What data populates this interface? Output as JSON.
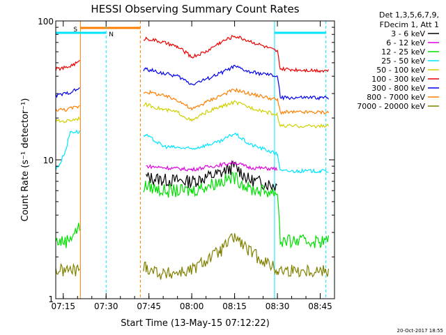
{
  "chart_data": {
    "type": "line",
    "title": "HESSI Observing Summary Count Rates",
    "xlabel": "Start Time (13-May-15 07:12:22)",
    "ylabel": "Count Rate (s⁻¹ detector⁻¹)",
    "y_scale": "log",
    "ylim": [
      1,
      100
    ],
    "xlim": [
      "07:12:22",
      "08:50:00"
    ],
    "x_ticks": [
      "07:15",
      "07:30",
      "07:45",
      "08:00",
      "08:15",
      "08:30",
      "08:45"
    ],
    "y_ticks": [
      "1",
      "10",
      "100"
    ],
    "legend": {
      "placement": "right",
      "header": [
        "Det 1,3,5,6,7,9,",
        "FDecim 1, Att 1"
      ]
    },
    "flag_labels": {
      "saa": "S",
      "night": "N"
    },
    "timestamp": "20-Oct-2017 18:55",
    "series": [
      {
        "name": "3 - 6 keV",
        "color": "#000000",
        "x": [
          "07:12:22",
          "07:15:00",
          "07:17:00",
          "07:44:00",
          "07:50:00",
          "08:00:00",
          "08:10:00",
          "08:15:00",
          "08:20:00",
          "08:30:00"
        ],
        "values": [
          null,
          null,
          null,
          7.5,
          7.2,
          7.0,
          8.0,
          9.0,
          7.2,
          6.5
        ]
      },
      {
        "name": "6 - 12 keV",
        "color": "#e000e0",
        "x": [
          "07:44:00",
          "07:50:00",
          "08:00:00",
          "08:10:00",
          "08:15:00",
          "08:20:00",
          "08:30:00"
        ],
        "values": [
          9.0,
          8.8,
          8.5,
          9.2,
          9.6,
          8.8,
          8.6
        ]
      },
      {
        "name": "12 - 25 keV",
        "color": "#00e000",
        "x": [
          "07:12:22",
          "07:16:00",
          "07:44:00",
          "07:50:00",
          "08:00:00",
          "08:10:00",
          "08:15:00",
          "08:20:00",
          "08:30:00",
          "08:31:00",
          "08:45:00",
          "08:48:00"
        ],
        "values": [
          2.6,
          2.6,
          6.5,
          6.0,
          6.0,
          7.0,
          7.5,
          6.2,
          5.8,
          2.6,
          2.6,
          2.6
        ]
      },
      {
        "name": "25 - 50 keV",
        "color": "#00e5ff",
        "x": [
          "07:12:22",
          "07:14:00",
          "07:16:00",
          "07:17:30",
          "07:44:00",
          "07:50:00",
          "08:00:00",
          "08:10:00",
          "08:15:00",
          "08:20:00",
          "08:30:00",
          "08:31:00",
          "08:45:00",
          "08:48:00"
        ],
        "values": [
          8.5,
          9.5,
          12,
          16,
          15,
          12.5,
          12,
          13.5,
          15.5,
          13,
          11,
          8.3,
          8.3,
          8.3
        ]
      },
      {
        "name": "50 - 100 keV",
        "color": "#d0d000",
        "x": [
          "07:12:22",
          "07:16:00",
          "07:44:00",
          "07:50:00",
          "07:55:00",
          "08:00:00",
          "08:05:00",
          "08:10:00",
          "08:15:00",
          "08:20:00",
          "08:30:00",
          "08:31:00",
          "08:45:00",
          "08:48:00"
        ],
        "values": [
          19,
          19,
          25,
          23,
          22,
          19,
          22,
          24,
          26,
          24,
          21,
          17.5,
          17.5,
          17.5
        ]
      },
      {
        "name": "100 - 300 keV",
        "color": "#ee0000",
        "x": [
          "07:12:22",
          "07:16:00",
          "07:44:00",
          "07:50:00",
          "07:55:00",
          "08:00:00",
          "08:05:00",
          "08:10:00",
          "08:15:00",
          "08:20:00",
          "08:30:00",
          "08:31:00",
          "08:45:00",
          "08:48:00"
        ],
        "values": [
          45,
          46,
          75,
          70,
          65,
          55,
          60,
          70,
          78,
          72,
          60,
          45,
          44,
          44
        ]
      },
      {
        "name": "300 - 800 keV",
        "color": "#0000ee",
        "x": [
          "07:12:22",
          "07:16:00",
          "07:44:00",
          "07:50:00",
          "07:55:00",
          "08:00:00",
          "08:05:00",
          "08:10:00",
          "08:15:00",
          "08:20:00",
          "08:30:00",
          "08:31:00",
          "08:45:00",
          "08:48:00"
        ],
        "values": [
          29,
          30,
          45,
          42,
          40,
          35,
          38,
          42,
          47,
          43,
          40,
          28,
          28,
          28
        ]
      },
      {
        "name": "800 - 7000 keV",
        "color": "#ff7f00",
        "x": [
          "07:12:22",
          "07:16:00",
          "07:44:00",
          "07:50:00",
          "07:55:00",
          "08:00:00",
          "08:05:00",
          "08:10:00",
          "08:15:00",
          "08:20:00",
          "08:30:00",
          "08:31:00",
          "08:45:00",
          "08:48:00"
        ],
        "values": [
          23,
          23,
          31,
          29,
          27,
          23,
          26,
          29,
          32,
          30,
          27,
          22,
          22,
          22
        ]
      },
      {
        "name": "7000 - 20000 keV",
        "color": "#808000",
        "x": [
          "07:12:22",
          "07:16:00",
          "07:44:00",
          "07:50:00",
          "08:00:00",
          "08:10:00",
          "08:15:00",
          "08:20:00",
          "08:30:00",
          "08:31:00",
          "08:45:00",
          "08:48:00"
        ],
        "values": [
          1.6,
          1.6,
          1.7,
          1.5,
          1.6,
          2.2,
          2.8,
          2.2,
          1.6,
          1.6,
          1.6,
          1.6
        ]
      }
    ],
    "flags": [
      {
        "name": "SAA",
        "label": "S",
        "color": "#ff7f00",
        "x": [
          "07:21:00",
          "07:42:00"
        ]
      },
      {
        "name": "Night",
        "label": "N",
        "color": "#00e5ff",
        "x": [
          "07:12:22",
          "07:30:00"
        ]
      },
      {
        "name": "Night",
        "label": "",
        "color": "#00e5ff",
        "x": [
          "08:29:00",
          "08:47:00"
        ]
      }
    ]
  }
}
